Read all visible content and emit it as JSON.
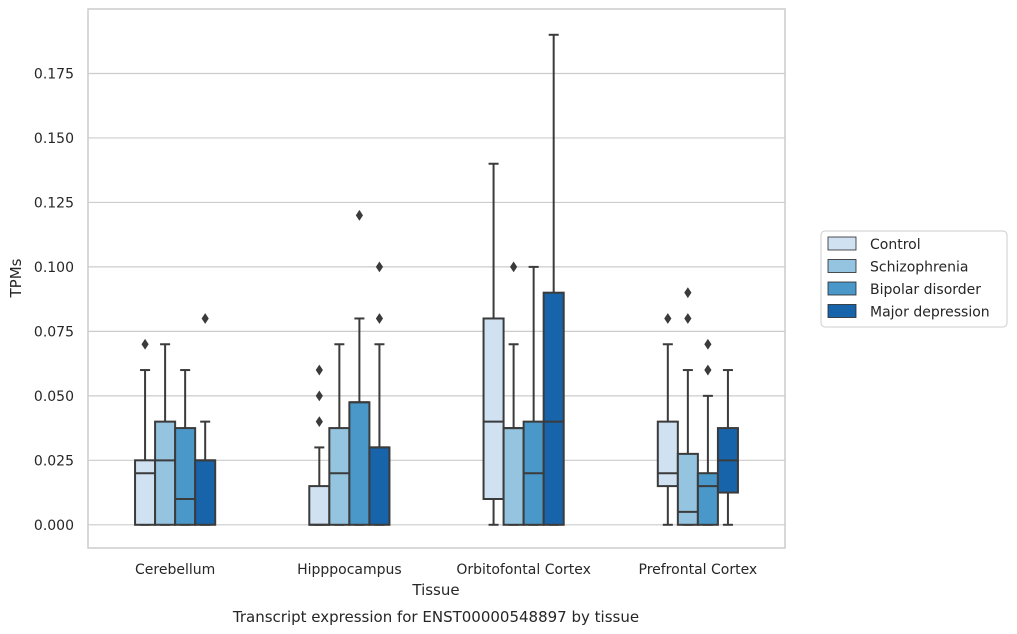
{
  "chart_data": {
    "type": "box",
    "title": "",
    "caption": "Transcript expression for ENST00000548897 by tissue",
    "xlabel": "Tissue",
    "ylabel": "TPMs",
    "ylim": [
      -0.009,
      0.2
    ],
    "yticks": [
      0.0,
      0.025,
      0.05,
      0.075,
      0.1,
      0.125,
      0.15,
      0.175
    ],
    "ytick_labels": [
      "0.000",
      "0.025",
      "0.050",
      "0.075",
      "0.100",
      "0.125",
      "0.150",
      "0.175"
    ],
    "grid": "horizontal",
    "legend_position": "right",
    "categories": [
      "Cerebellum",
      "Hipppocampus",
      "Orbitofontal Cortex",
      "Prefrontal Cortex"
    ],
    "series": [
      {
        "name": "Control",
        "color": "#d0e1f2",
        "boxes": [
          {
            "whislo": 0.0,
            "q1": 0.0,
            "med": 0.02,
            "q3": 0.025,
            "whishi": 0.06,
            "fliers": [
              0.07
            ]
          },
          {
            "whislo": 0.0,
            "q1": 0.0,
            "med": 0.0,
            "q3": 0.015,
            "whishi": 0.03,
            "fliers": [
              0.04,
              0.05,
              0.06
            ]
          },
          {
            "whislo": 0.0,
            "q1": 0.01,
            "med": 0.04,
            "q3": 0.08,
            "whishi": 0.14,
            "fliers": []
          },
          {
            "whislo": 0.0,
            "q1": 0.015,
            "med": 0.02,
            "q3": 0.04,
            "whishi": 0.07,
            "fliers": [
              0.08
            ]
          }
        ]
      },
      {
        "name": "Schizophrenia",
        "color": "#94c4df",
        "boxes": [
          {
            "whislo": 0.0,
            "q1": 0.0,
            "med": 0.025,
            "q3": 0.04,
            "whishi": 0.07,
            "fliers": []
          },
          {
            "whislo": 0.0,
            "q1": 0.0,
            "med": 0.02,
            "q3": 0.0375,
            "whishi": 0.07,
            "fliers": []
          },
          {
            "whislo": 0.0,
            "q1": 0.0,
            "med": 0.0375,
            "q3": 0.0375,
            "whishi": 0.07,
            "fliers": [
              0.1
            ]
          },
          {
            "whislo": 0.0,
            "q1": 0.0,
            "med": 0.005,
            "q3": 0.0275,
            "whishi": 0.06,
            "fliers": [
              0.08,
              0.09
            ]
          }
        ]
      },
      {
        "name": "Bipolar disorder",
        "color": "#4a98c9",
        "boxes": [
          {
            "whislo": 0.0,
            "q1": 0.0,
            "med": 0.01,
            "q3": 0.0375,
            "whishi": 0.06,
            "fliers": []
          },
          {
            "whislo": 0.0,
            "q1": 0.0,
            "med": 0.0475,
            "q3": 0.0475,
            "whishi": 0.08,
            "fliers": [
              0.12
            ]
          },
          {
            "whislo": 0.0,
            "q1": 0.0,
            "med": 0.02,
            "q3": 0.04,
            "whishi": 0.1,
            "fliers": []
          },
          {
            "whislo": 0.0,
            "q1": 0.0,
            "med": 0.015,
            "q3": 0.02,
            "whishi": 0.05,
            "fliers": [
              0.06,
              0.07
            ]
          }
        ]
      },
      {
        "name": "Major depression",
        "color": "#1764ab",
        "boxes": [
          {
            "whislo": 0.0,
            "q1": 0.0,
            "med": 0.025,
            "q3": 0.025,
            "whishi": 0.04,
            "fliers": [
              0.08
            ]
          },
          {
            "whislo": 0.0,
            "q1": 0.0,
            "med": 0.03,
            "q3": 0.03,
            "whishi": 0.07,
            "fliers": [
              0.08,
              0.1
            ]
          },
          {
            "whislo": 0.0,
            "q1": 0.0,
            "med": 0.04,
            "q3": 0.09,
            "whishi": 0.19,
            "fliers": []
          },
          {
            "whislo": 0.0,
            "q1": 0.0125,
            "med": 0.025,
            "q3": 0.0375,
            "whishi": 0.06,
            "fliers": []
          }
        ]
      }
    ]
  }
}
